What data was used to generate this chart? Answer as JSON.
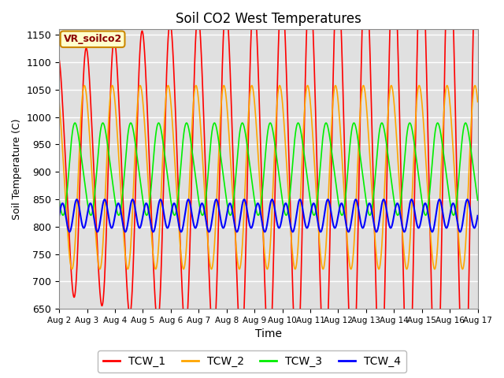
{
  "title": "Soil CO2 West Temperatures",
  "xlabel": "Time",
  "ylabel": "Soil Temperature (C)",
  "ylim": [
    650,
    1160
  ],
  "xlim": [
    0,
    15
  ],
  "series": {
    "TCW_1": {
      "color": "#ff0000",
      "lw": 1.2
    },
    "TCW_2": {
      "color": "#ffa500",
      "lw": 1.2
    },
    "TCW_3": {
      "color": "#00ee00",
      "lw": 1.2
    },
    "TCW_4": {
      "color": "#0000ff",
      "lw": 1.5
    }
  },
  "xtick_labels": [
    "Aug 2",
    "Aug 3",
    "Aug 4",
    "Aug 5",
    "Aug 6",
    "Aug 7",
    "Aug 8",
    "Aug 9",
    "Aug 10",
    "Aug 11",
    "Aug 12",
    "Aug 13",
    "Aug 14",
    "Aug 15",
    "Aug 16",
    "Aug 17"
  ],
  "bg_color": "#e0e0e0",
  "fig_bg": "#ffffff",
  "grid_color": "#ffffff",
  "legend_name": "VR_soilco2",
  "legend_bg": "#ffffcc",
  "legend_border": "#cc8800",
  "annotation_color": "#8B0000"
}
